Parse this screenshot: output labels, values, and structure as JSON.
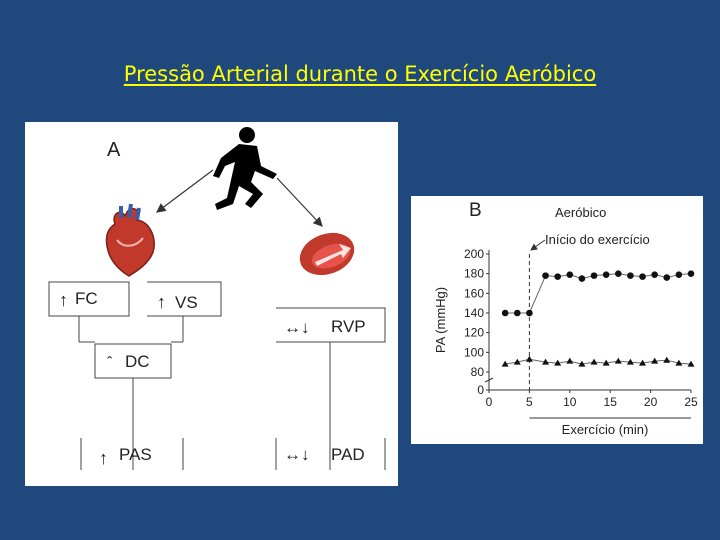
{
  "slide": {
    "title": "Pressão Arterial durante o Exercício Aeróbico"
  },
  "panel_a": {
    "label": "A",
    "icons": [
      "runner-icon",
      "heart-icon",
      "artery-icon"
    ],
    "colors": {
      "heart": "#c0392b",
      "artery": "#c0392b",
      "artery_inner": "#e6534a"
    },
    "boxes": {
      "fc": {
        "arrow": "↑",
        "text": "FC"
      },
      "vs": {
        "arrow": "↑",
        "text": "VS"
      },
      "dc": {
        "arrow": "ˆ",
        "text": "DC"
      },
      "pas": {
        "arrow": "↑",
        "text": "PAS"
      },
      "rvp": {
        "arrow": "↔↓",
        "text": "RVP"
      },
      "pad": {
        "arrow": "↔↓",
        "text": "PAD"
      }
    }
  },
  "panel_b": {
    "label": "B",
    "annotation_aerobic": "Aeróbico",
    "annotation_start": "Início do exercício",
    "chart_data": {
      "type": "line",
      "xlabel": "Exercício (min)",
      "ylabel": "PA (mmHg)",
      "xlim": [
        0,
        25
      ],
      "ylim": [
        0,
        200
      ],
      "x_ticks": [
        "0",
        "5",
        "10",
        "15",
        "20",
        "25"
      ],
      "y_ticks": [
        "0",
        "80",
        "100",
        "120",
        "140",
        "160",
        "180",
        "200"
      ],
      "exercise_start": 5,
      "series": [
        {
          "marker": "circle",
          "x": [
            2,
            3.5,
            5,
            7,
            8.5,
            10,
            11.5,
            13,
            14.5,
            16,
            17.5,
            19,
            20.5,
            22,
            23.5,
            25
          ],
          "y": [
            140,
            140,
            140,
            178,
            177,
            179,
            175,
            178,
            179,
            180,
            178,
            177,
            179,
            176,
            179,
            180
          ]
        },
        {
          "marker": "triangle",
          "x": [
            2,
            3.5,
            5,
            7,
            8.5,
            10,
            11.5,
            13,
            14.5,
            16,
            17.5,
            19,
            20.5,
            22,
            23.5,
            25
          ],
          "y": [
            88,
            90,
            93,
            90,
            89,
            91,
            88,
            90,
            89,
            91,
            90,
            89,
            91,
            92,
            89,
            88
          ]
        }
      ]
    }
  }
}
